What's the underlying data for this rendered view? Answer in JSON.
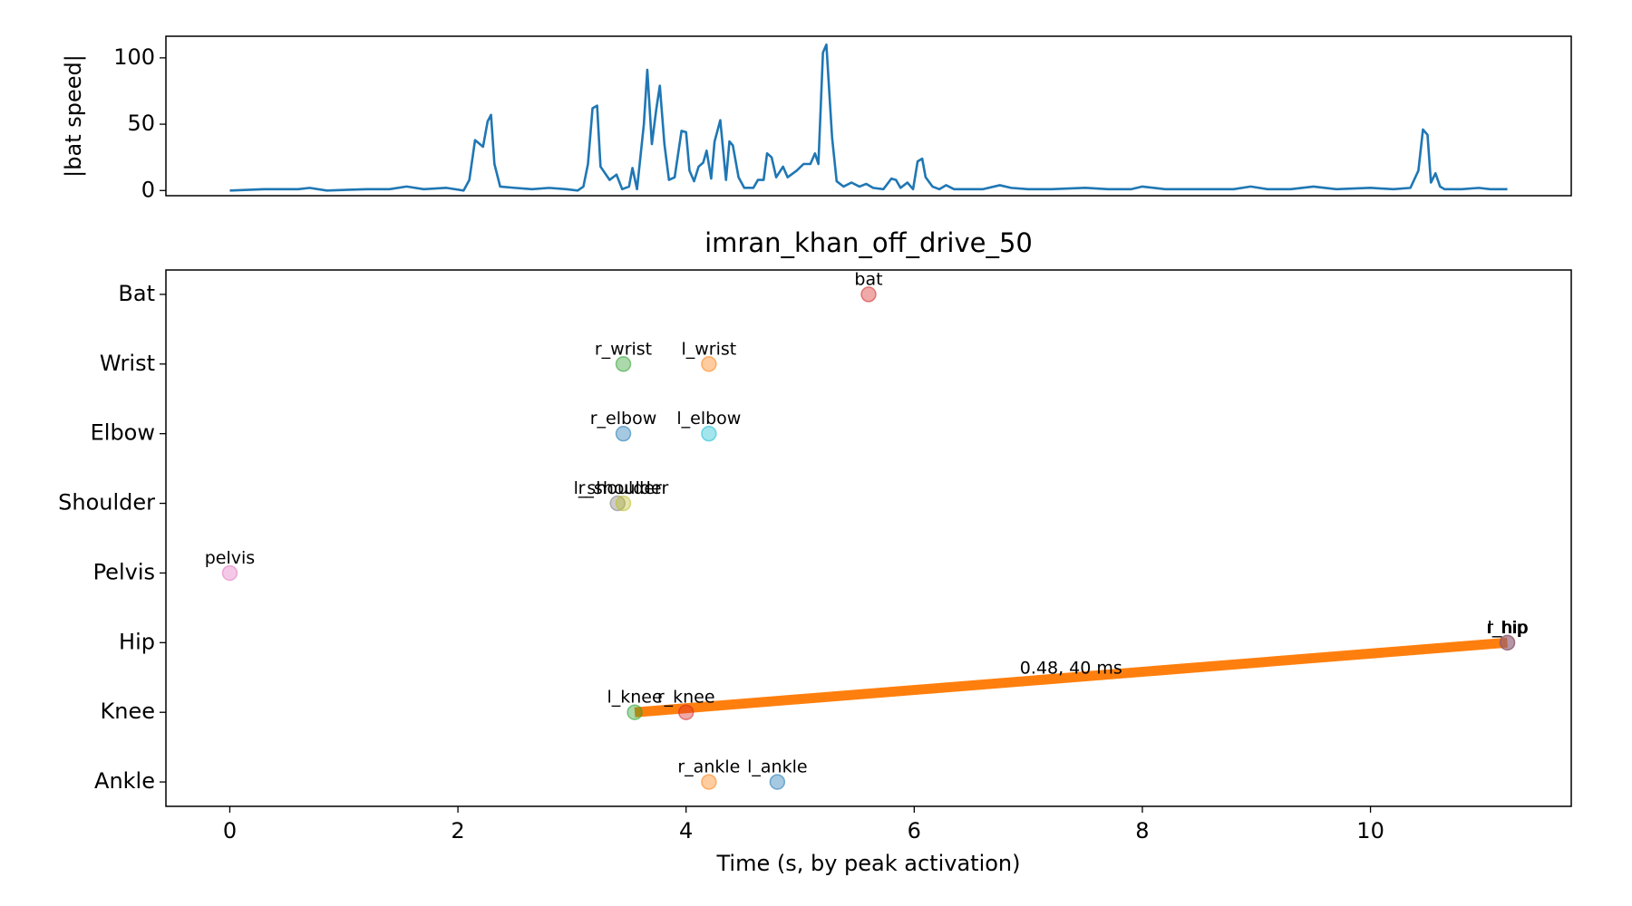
{
  "chart_data": [
    {
      "type": "line",
      "ylabel": "|bat speed|",
      "color": "#1f77b4",
      "x": [
        0,
        0.3,
        0.6,
        0.7,
        0.85,
        1.2,
        1.4,
        1.55,
        1.7,
        1.9,
        2.05,
        2.1,
        2.15,
        2.22,
        2.26,
        2.29,
        2.32,
        2.37,
        2.5,
        2.65,
        2.8,
        2.95,
        3.05,
        3.1,
        3.14,
        3.18,
        3.22,
        3.25,
        3.33,
        3.39,
        3.44,
        3.5,
        3.53,
        3.57,
        3.63,
        3.66,
        3.7,
        3.74,
        3.77,
        3.81,
        3.85,
        3.9,
        3.96,
        4.0,
        4.03,
        4.07,
        4.11,
        4.15,
        4.18,
        4.22,
        4.25,
        4.3,
        4.35,
        4.38,
        4.41,
        4.46,
        4.51,
        4.59,
        4.63,
        4.68,
        4.71,
        4.75,
        4.79,
        4.85,
        4.89,
        4.97,
        5.03,
        5.09,
        5.13,
        5.16,
        5.2,
        5.23,
        5.28,
        5.32,
        5.38,
        5.45,
        5.52,
        5.58,
        5.64,
        5.73,
        5.8,
        5.84,
        5.88,
        5.94,
        5.99,
        6.03,
        6.07,
        6.1,
        6.16,
        6.22,
        6.28,
        6.35,
        6.6,
        6.75,
        6.85,
        7.0,
        7.2,
        7.5,
        7.7,
        7.9,
        8.0,
        8.2,
        8.5,
        8.8,
        8.95,
        9.1,
        9.3,
        9.5,
        9.7,
        10.0,
        10.2,
        10.35,
        10.42,
        10.46,
        10.5,
        10.53,
        10.57,
        10.61,
        10.65,
        10.8,
        10.95,
        11.05,
        11.2
      ],
      "values": [
        0,
        1,
        1,
        2,
        0,
        1,
        1,
        3,
        1,
        2,
        0,
        8,
        38,
        33,
        52,
        57,
        20,
        3,
        2,
        1,
        2,
        1,
        0,
        3,
        20,
        62,
        64,
        18,
        8,
        12,
        1,
        3,
        17,
        1,
        50,
        91,
        35,
        62,
        79,
        35,
        8,
        10,
        45,
        44,
        15,
        7,
        18,
        21,
        30,
        9,
        37,
        53,
        8,
        37,
        34,
        10,
        2,
        2,
        8,
        8,
        28,
        25,
        10,
        18,
        10,
        15,
        20,
        20,
        28,
        20,
        104,
        110,
        40,
        7,
        3,
        6,
        3,
        5,
        2,
        1,
        9,
        8,
        2,
        6,
        1,
        22,
        24,
        10,
        3,
        1,
        4,
        1,
        1,
        4,
        2,
        1,
        1,
        2,
        1,
        1,
        3,
        1,
        1,
        1,
        3,
        1,
        1,
        3,
        1,
        2,
        1,
        2,
        15,
        46,
        42,
        6,
        13,
        3,
        1,
        1,
        2,
        1,
        1
      ],
      "xlim": [
        -0.56,
        11.76
      ],
      "ylim": [
        -3.9,
        116.3
      ],
      "yticks": [
        0,
        50,
        100
      ]
    },
    {
      "type": "scatter",
      "title": "imran_khan_off_drive_50",
      "xlabel": "Time (s, by peak activation)",
      "xlim": [
        -0.56,
        11.76
      ],
      "xticks": [
        0,
        2,
        4,
        6,
        8,
        10
      ],
      "ylim": [
        -0.35,
        7.35
      ],
      "yticks": [
        {
          "value": 0,
          "label": "Ankle"
        },
        {
          "value": 1,
          "label": "Knee"
        },
        {
          "value": 2,
          "label": "Hip"
        },
        {
          "value": 3,
          "label": "Pelvis"
        },
        {
          "value": 4,
          "label": "Shoulder"
        },
        {
          "value": 5,
          "label": "Elbow"
        },
        {
          "value": 6,
          "label": "Wrist"
        },
        {
          "value": 7,
          "label": "Bat"
        }
      ],
      "series": [
        {
          "name": "bat",
          "color": "#d62728",
          "x": [
            5.6
          ],
          "values": [
            7
          ]
        },
        {
          "name": "r_wrist",
          "color": "#2ca02c",
          "x": [
            3.45
          ],
          "values": [
            6
          ]
        },
        {
          "name": "l_wrist",
          "color": "#ff7f0e",
          "x": [
            4.2
          ],
          "values": [
            6
          ]
        },
        {
          "name": "r_elbow",
          "color": "#1f77b4",
          "x": [
            3.45
          ],
          "values": [
            5
          ]
        },
        {
          "name": "l_elbow",
          "color": "#17becf",
          "x": [
            4.2
          ],
          "values": [
            5
          ]
        },
        {
          "name": "l_shoulder",
          "color": "#7f7f7f",
          "x": [
            3.4
          ],
          "values": [
            4
          ]
        },
        {
          "name": "r_shoulder",
          "color": "#bcbd22",
          "x": [
            3.45
          ],
          "values": [
            4
          ]
        },
        {
          "name": "pelvis",
          "color": "#e377c2",
          "x": [
            0
          ],
          "values": [
            3
          ]
        },
        {
          "name": "r_hip",
          "color": "#9467bd",
          "x": [
            11.2
          ],
          "values": [
            2
          ]
        },
        {
          "name": "l_hip",
          "color": "#8c564b",
          "x": [
            11.2
          ],
          "values": [
            2
          ]
        },
        {
          "name": "l_knee",
          "color": "#2ca02c",
          "x": [
            3.55
          ],
          "values": [
            1
          ]
        },
        {
          "name": "r_knee",
          "color": "#d62728",
          "x": [
            4.0
          ],
          "values": [
            1
          ]
        },
        {
          "name": "r_ankle",
          "color": "#ff7f0e",
          "x": [
            4.2
          ],
          "values": [
            0
          ]
        },
        {
          "name": "l_ankle",
          "color": "#1f77b4",
          "x": [
            4.8
          ],
          "values": [
            0
          ]
        }
      ],
      "segment": {
        "x": [
          3.55,
          11.2
        ],
        "y": [
          1,
          2
        ],
        "color": "#ff7f0e",
        "label": "0.48, 40 ms"
      }
    }
  ]
}
